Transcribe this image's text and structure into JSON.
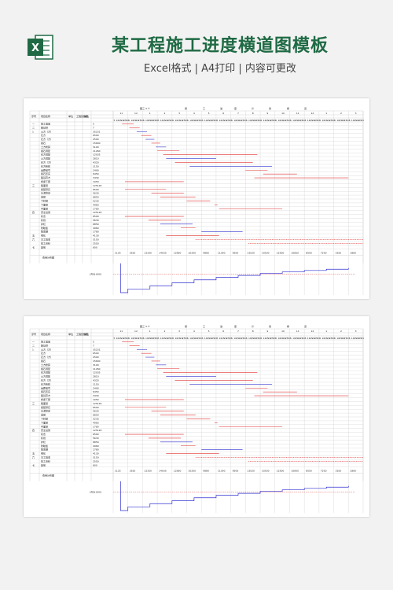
{
  "header": {
    "title": "某工程施工进度横道图模板",
    "subtitle": "Excel格式 | A4打印 | 内容可更改",
    "logo_letter": "X",
    "brand_color": "#1f6a44"
  },
  "sheet": {
    "title_chars": [
      "图三·3·①",
      "施",
      "工",
      "进",
      "度",
      "计",
      "划",
      "横",
      "道"
    ],
    "col_headers": [
      "序号",
      "项目名称",
      "单位",
      "工程量数量",
      "单位"
    ],
    "month_labels": [
      "11",
      "12",
      "1",
      "2",
      "3",
      "4",
      "5",
      "6",
      "7",
      "8",
      "9",
      "10",
      "11",
      "12",
      "1",
      "2",
      "3"
    ],
    "rows": [
      {
        "no": "一",
        "name": "施工准备",
        "qty": "5"
      },
      {
        "no": "二",
        "name": "路基桥",
        "qty": "7"
      },
      {
        "no": "1",
        "name": "土方（方）",
        "qty": "35231"
      },
      {
        "no": "",
        "name": "石方",
        "qty": "6500"
      },
      {
        "no": "",
        "name": "石方（方）",
        "qty": "2500"
      },
      {
        "no": "",
        "name": "级石",
        "qty": "15600"
      },
      {
        "no": "",
        "name": "土方粉碎",
        "qty": "3100"
      },
      {
        "no": "",
        "name": "级石调配",
        "qty": "11260"
      },
      {
        "no": "",
        "name": "石方调配",
        "qty": "12035"
      },
      {
        "no": "",
        "name": "土方调配",
        "qty": "2810"
      },
      {
        "no": "",
        "name": "石方（方）",
        "qty": "4320"
      },
      {
        "no": "",
        "name": "石方粉碎",
        "qty": "1150"
      },
      {
        "no": "",
        "name": "运距编号",
        "qty": "2490"
      },
      {
        "no": "",
        "name": "级石压实",
        "qty": "6450"
      },
      {
        "no": "",
        "name": "路基弃方",
        "qty": "3430"
      },
      {
        "no": "",
        "name": "桥梁下部",
        "qty": "1050"
      },
      {
        "no": "三",
        "name": "路面层",
        "qty": "125120"
      },
      {
        "no": "",
        "name": "级配碎石",
        "qty": "6500"
      },
      {
        "no": "",
        "name": "水泥稳定",
        "qty": "5630"
      },
      {
        "no": "",
        "name": "透层",
        "qty": "6850"
      },
      {
        "no": "",
        "name": "下封层",
        "qty": "5230"
      },
      {
        "no": "",
        "name": "下面层",
        "qty": "4960"
      },
      {
        "no": "",
        "name": "中面层",
        "qty": "1780"
      },
      {
        "no": "四",
        "name": "安全设施",
        "qty": "125120"
      },
      {
        "no": "",
        "name": "标志",
        "qty": "6500"
      },
      {
        "no": "",
        "name": "标线",
        "qty": "5630"
      },
      {
        "no": "",
        "name": "护栏",
        "qty": "6850"
      },
      {
        "no": "",
        "name": "防眩板",
        "qty": "4960"
      },
      {
        "no": "",
        "name": "隔离栅",
        "qty": "1780"
      },
      {
        "no": "五",
        "name": "绿化",
        "qty": "4130"
      },
      {
        "no": "六",
        "name": "交工验收",
        "qty": "3150"
      },
      {
        "no": "",
        "name": "竣工资料",
        "qty": "2550"
      },
      {
        "no": "七",
        "name": "其他",
        "qty": "600"
      }
    ],
    "summary_label": "费用分布图",
    "summary_values": [
      "1125",
      "3520",
      "12330",
      "14030",
      "12580",
      "10250",
      "9880",
      "11390",
      "9500",
      "13520",
      "10530",
      "12500",
      "10850",
      "8550",
      "7250",
      "3100",
      "1860"
    ],
    "summary_note": "(万元·600)",
    "colors": {
      "planned": "#e03030",
      "actual": "#3030d0",
      "grid": "#c8c8c8"
    }
  }
}
